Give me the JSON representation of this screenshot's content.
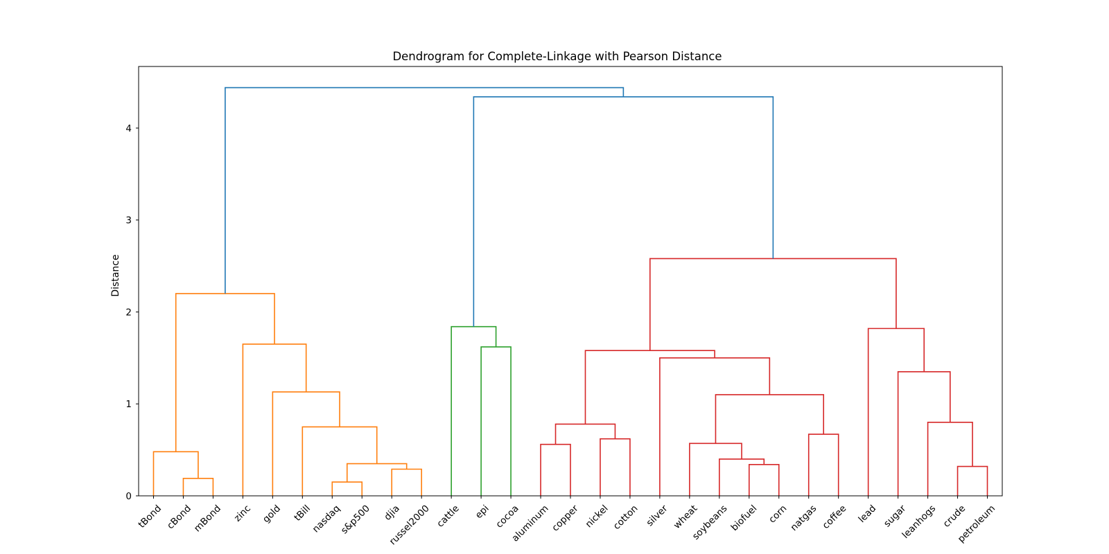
{
  "chart_data": {
    "type": "dendrogram",
    "title": "Dendrogram for Complete-Linkage with Pearson Distance",
    "xlabel": "",
    "ylabel": "Distance",
    "ylim": [
      0,
      4.67
    ],
    "yticks": [
      0,
      1,
      2,
      3,
      4
    ],
    "leaves": [
      "tBond",
      "cBond",
      "mBond",
      "zinc",
      "gold",
      "tBill",
      "nasdaq",
      "s&p500",
      "djia",
      "russel2000",
      "cattle",
      "epi",
      "cocoa",
      "aluminum",
      "copper",
      "nickel",
      "cotton",
      "silver",
      "wheat",
      "soybeans",
      "biofuel",
      "corn",
      "natgas",
      "coffee",
      "lead",
      "sugar",
      "leanhogs",
      "crude",
      "petroleum"
    ],
    "colors": {
      "orange": "#ff7f0e",
      "green": "#2ca02c",
      "red": "#d62728",
      "blue": "#1f77b4"
    },
    "merges": [
      {
        "a": "L1",
        "b": "L2",
        "height": 0.19,
        "color": "orange"
      },
      {
        "a": "L0",
        "b": 0,
        "height": 0.48,
        "color": "orange"
      },
      {
        "a": "L6",
        "b": "L7",
        "height": 0.15,
        "color": "orange"
      },
      {
        "a": "L8",
        "b": "L9",
        "height": 0.29,
        "color": "orange"
      },
      {
        "a": 2,
        "b": 3,
        "height": 0.35,
        "color": "orange"
      },
      {
        "a": "L5",
        "b": 4,
        "height": 0.75,
        "color": "orange"
      },
      {
        "a": "L4",
        "b": 5,
        "height": 1.13,
        "color": "orange"
      },
      {
        "a": "L3",
        "b": 6,
        "height": 1.65,
        "color": "orange"
      },
      {
        "a": 1,
        "b": 7,
        "height": 2.2,
        "color": "orange"
      },
      {
        "a": "L11",
        "b": "L12",
        "height": 1.62,
        "color": "green"
      },
      {
        "a": "L10",
        "b": 9,
        "height": 1.84,
        "color": "green"
      },
      {
        "a": "L13",
        "b": "L14",
        "height": 0.56,
        "color": "red"
      },
      {
        "a": "L15",
        "b": "L16",
        "height": 0.62,
        "color": "red"
      },
      {
        "a": 11,
        "b": 12,
        "height": 0.78,
        "color": "red"
      },
      {
        "a": "L20",
        "b": "L21",
        "height": 0.34,
        "color": "red"
      },
      {
        "a": "L19",
        "b": 14,
        "height": 0.4,
        "color": "red"
      },
      {
        "a": "L18",
        "b": 15,
        "height": 0.57,
        "color": "red"
      },
      {
        "a": "L22",
        "b": "L23",
        "height": 0.67,
        "color": "red"
      },
      {
        "a": 16,
        "b": 17,
        "height": 1.1,
        "color": "red"
      },
      {
        "a": "L17",
        "b": 18,
        "height": 1.5,
        "color": "red"
      },
      {
        "a": 13,
        "b": 19,
        "height": 1.58,
        "color": "red"
      },
      {
        "a": "L27",
        "b": "L28",
        "height": 0.32,
        "color": "red"
      },
      {
        "a": "L26",
        "b": 21,
        "height": 0.8,
        "color": "red"
      },
      {
        "a": "L25",
        "b": 22,
        "height": 1.35,
        "color": "red"
      },
      {
        "a": "L24",
        "b": 23,
        "height": 1.82,
        "color": "red"
      },
      {
        "a": 20,
        "b": 24,
        "height": 2.58,
        "color": "red"
      },
      {
        "a": 10,
        "b": 25,
        "height": 4.34,
        "color": "blue"
      },
      {
        "a": 8,
        "b": 26,
        "height": 4.44,
        "color": "blue"
      }
    ]
  }
}
